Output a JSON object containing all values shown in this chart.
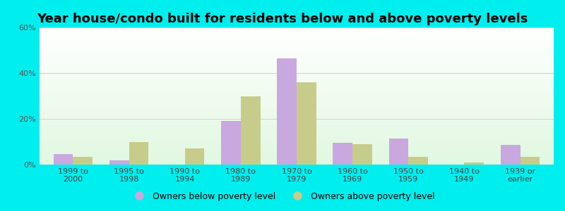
{
  "title": "Year house/condo built for residents below and above poverty levels",
  "categories": [
    "1999 to\n2000",
    "1995 to\n1998",
    "1990 to\n1994",
    "1980 to\n1989",
    "1970 to\n1979",
    "1960 to\n1969",
    "1950 to\n1959",
    "1940 to\n1949",
    "1939 or\nearlier"
  ],
  "below_poverty": [
    4.5,
    2.0,
    0.0,
    19.0,
    46.5,
    9.5,
    11.5,
    0.0,
    8.5
  ],
  "above_poverty": [
    3.5,
    10.0,
    7.0,
    30.0,
    36.0,
    9.0,
    3.5,
    1.0,
    3.5
  ],
  "below_color": "#c9a8e0",
  "above_color": "#c8cc8a",
  "ylim": [
    0,
    60
  ],
  "yticks": [
    0,
    20,
    40,
    60
  ],
  "ytick_labels": [
    "0%",
    "20%",
    "40%",
    "60%"
  ],
  "cyan_border": "#00eeee",
  "grid_color": "#e8c8d0",
  "legend_below": "Owners below poverty level",
  "legend_above": "Owners above poverty level",
  "bar_width": 0.35,
  "title_fontsize": 13,
  "tick_fontsize": 8,
  "legend_fontsize": 9
}
